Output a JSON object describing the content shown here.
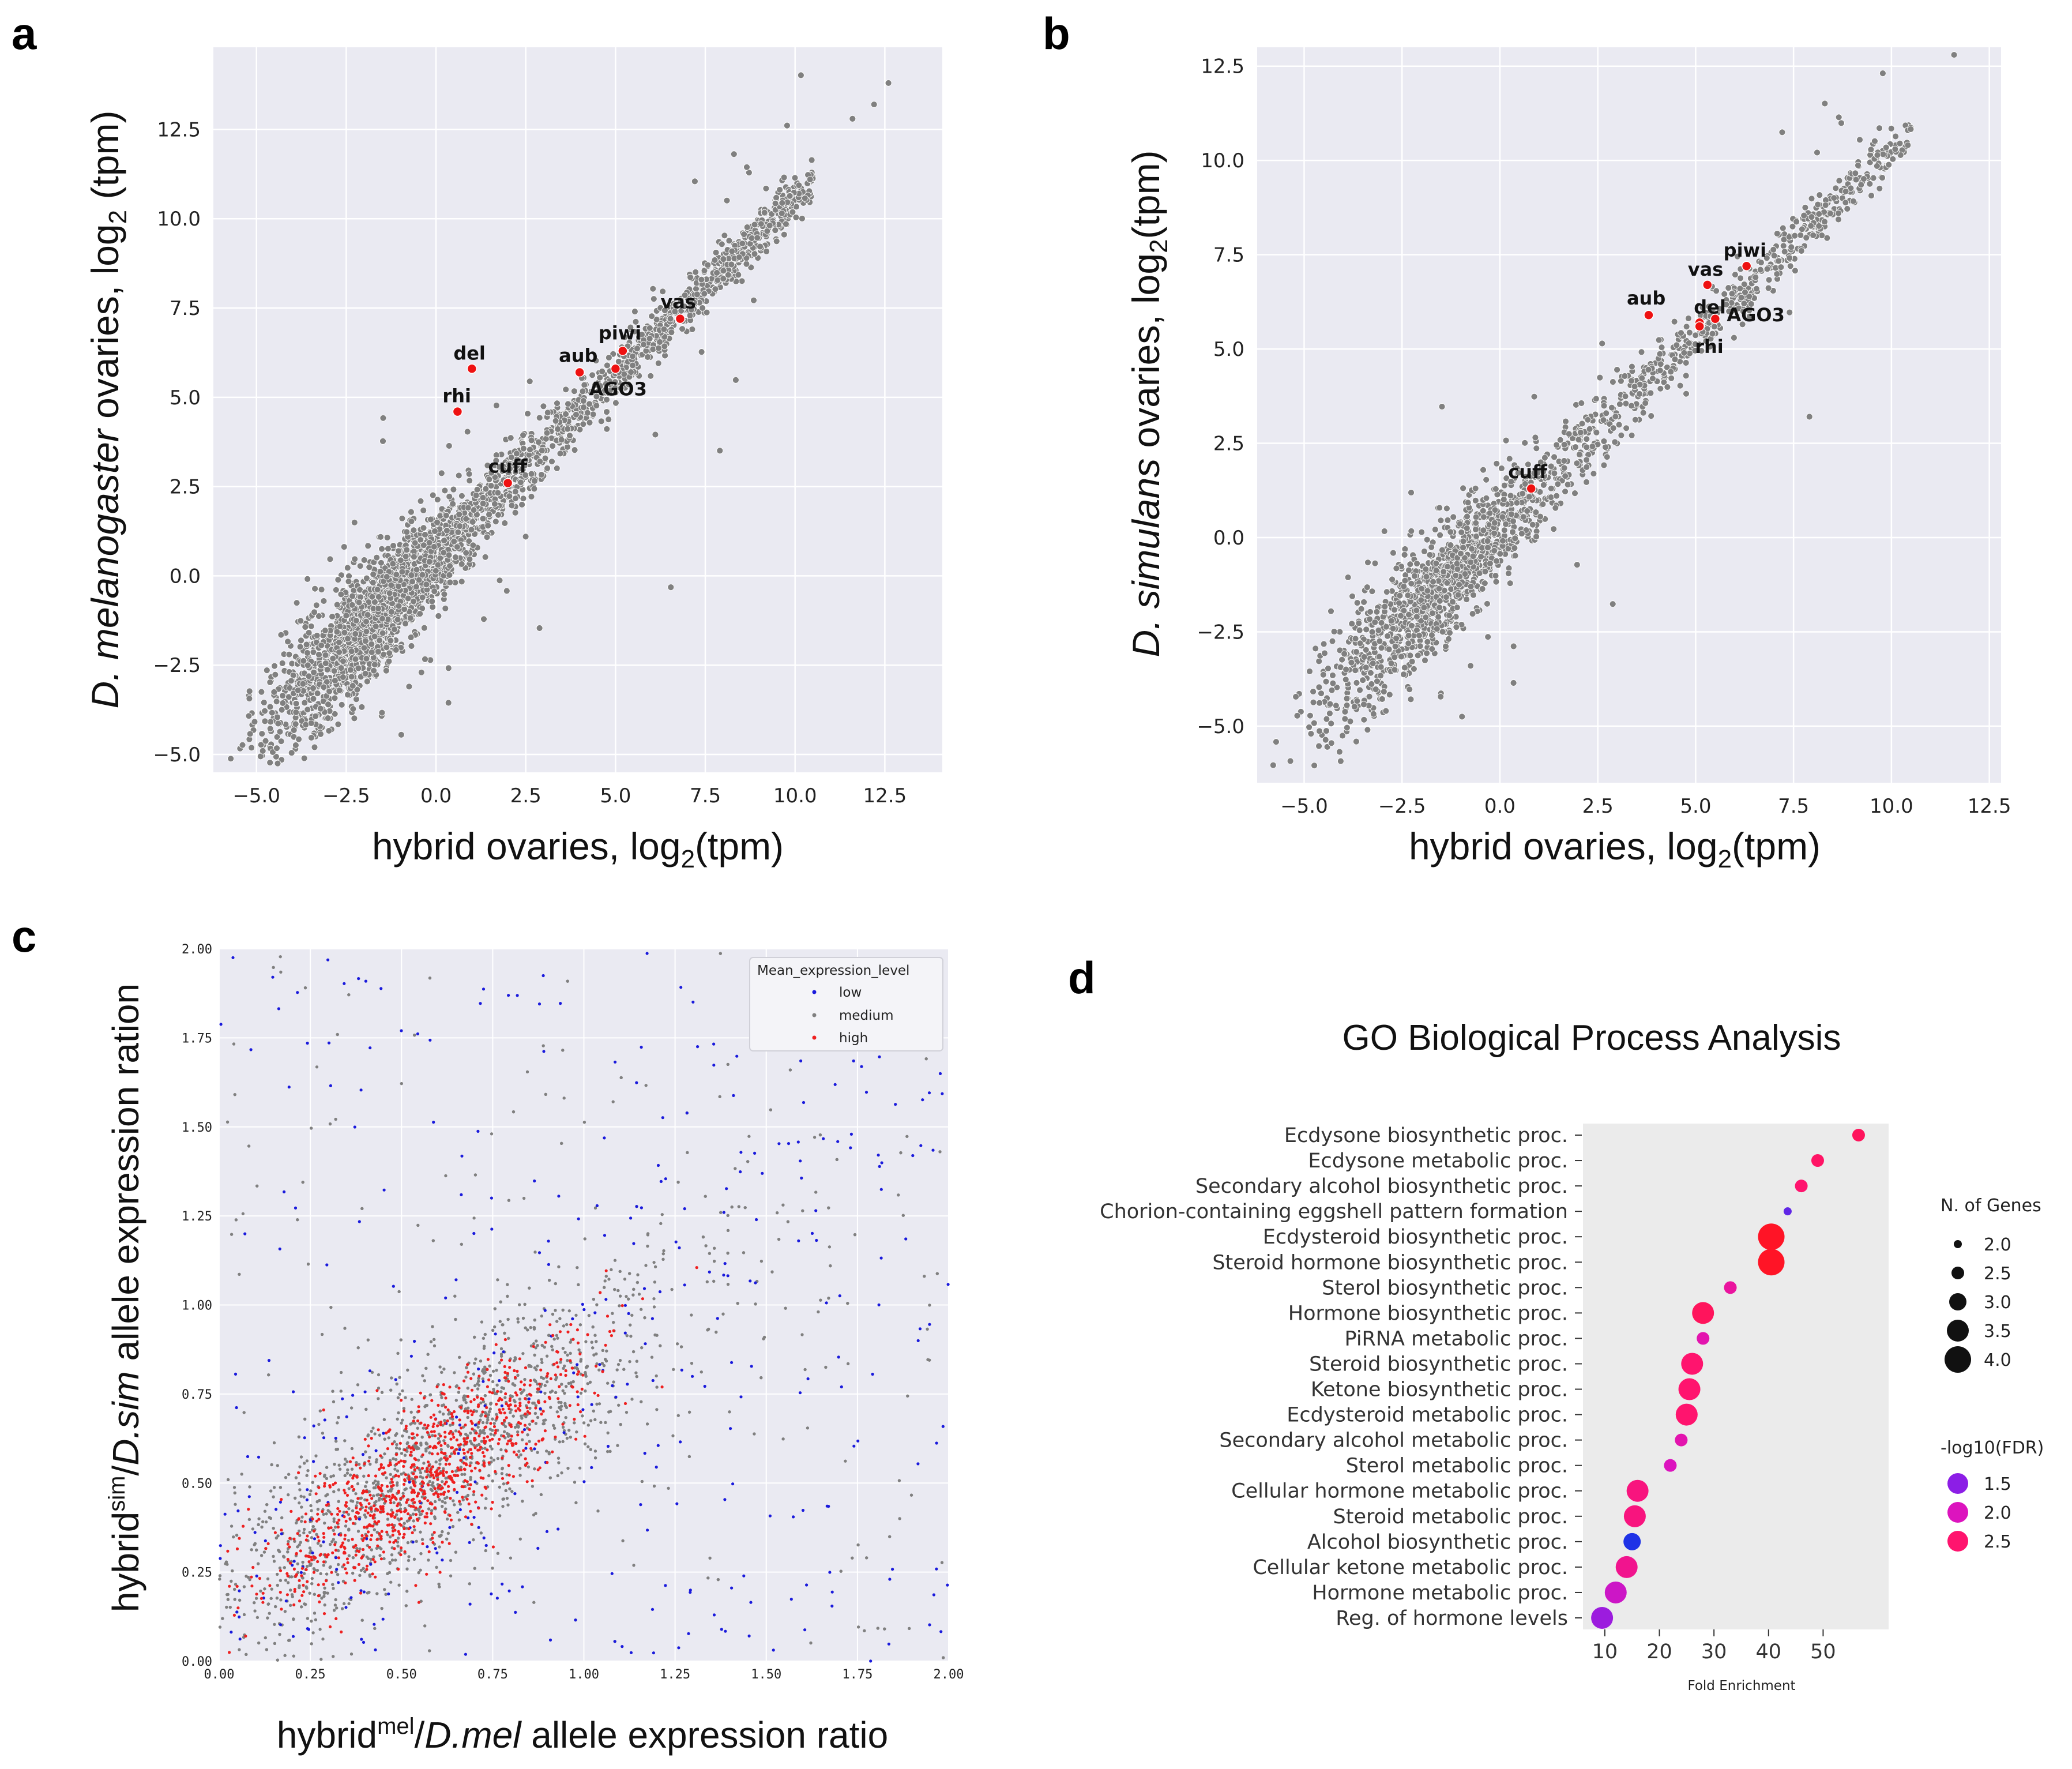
{
  "panel_labels": {
    "a": "a",
    "b": "b",
    "c": "c",
    "d": "d"
  },
  "chart_data": [
    {
      "id": "a",
      "type": "scatter",
      "title": "",
      "xlabel_text": "hybrid ovaries, log",
      "xlabel_sub": "2",
      "xlabel_tail": "(tpm)",
      "ylabel_italic": "D. melanogaster",
      "ylabel_text": " ovaries, log",
      "ylabel_sub": "2",
      "ylabel_tail": " (tpm)",
      "xlim": [
        -6.2,
        14.1
      ],
      "ylim": [
        -5.5,
        14.8
      ],
      "xticks": [
        -5.0,
        -2.5,
        0.0,
        2.5,
        5.0,
        7.5,
        10.0,
        12.5
      ],
      "yticks": [
        -5.0,
        -2.5,
        0.0,
        2.5,
        5.0,
        7.5,
        10.0,
        12.5
      ],
      "xtick_labels": [
        "−5.0",
        "−2.5",
        "0.0",
        "2.5",
        "5.0",
        "7.5",
        "10.0",
        "12.5"
      ],
      "ytick_labels": [
        "−5.0",
        "−2.5",
        "0.0",
        "2.5",
        "5.0",
        "7.5",
        "10.0",
        "12.5"
      ],
      "grid": true,
      "cloud": {
        "slope": 1.0,
        "intercept": 0.6,
        "x_range": [
          -5.8,
          13.2
        ],
        "n_points": 5200,
        "color": "#808080"
      },
      "highlighted_genes": [
        {
          "label": "del",
          "x": 1.0,
          "y": 5.8
        },
        {
          "label": "rhi",
          "x": 0.6,
          "y": 4.6
        },
        {
          "label": "aub",
          "x": 4.0,
          "y": 5.7
        },
        {
          "label": "piwi",
          "x": 5.2,
          "y": 6.3
        },
        {
          "label": "AGO3",
          "x": 5.0,
          "y": 5.8
        },
        {
          "label": "vas",
          "x": 6.8,
          "y": 7.2
        },
        {
          "label": "cuff",
          "x": 2.0,
          "y": 2.6
        }
      ],
      "highlight_color": "#ee1111"
    },
    {
      "id": "b",
      "type": "scatter",
      "title": "",
      "xlabel_text": "hybrid ovaries, log",
      "xlabel_sub": "2",
      "xlabel_tail": "(tpm)",
      "ylabel_italic": "D. simulans",
      "ylabel_text": " ovaries, log",
      "ylabel_sub": "2",
      "ylabel_tail": "(tpm)",
      "xlim": [
        -6.2,
        12.8
      ],
      "ylim": [
        -6.5,
        13.0
      ],
      "xticks": [
        -5.0,
        -2.5,
        0.0,
        2.5,
        5.0,
        7.5,
        10.0,
        12.5
      ],
      "yticks": [
        -5.0,
        -2.5,
        0.0,
        2.5,
        5.0,
        7.5,
        10.0,
        12.5
      ],
      "xtick_labels": [
        "−5.0",
        "−2.5",
        "0.0",
        "2.5",
        "5.0",
        "7.5",
        "10.0",
        "12.5"
      ],
      "ytick_labels": [
        "−5.0",
        "−2.5",
        "0.0",
        "2.5",
        "5.0",
        "7.5",
        "10.0",
        "12.5"
      ],
      "grid": true,
      "cloud": {
        "slope": 1.0,
        "intercept": 0.3,
        "x_range": [
          -5.8,
          12.0
        ],
        "n_points": 5200,
        "color": "#808080"
      },
      "highlighted_genes": [
        {
          "label": "piwi",
          "x": 6.3,
          "y": 7.2
        },
        {
          "label": "vas",
          "x": 5.3,
          "y": 6.7
        },
        {
          "label": "aub",
          "x": 3.8,
          "y": 5.9
        },
        {
          "label": "del",
          "x": 5.1,
          "y": 5.7
        },
        {
          "label": "AGO3",
          "x": 5.5,
          "y": 5.8
        },
        {
          "label": "rhi",
          "x": 5.1,
          "y": 5.6
        },
        {
          "label": "cuff",
          "x": 0.8,
          "y": 1.3
        }
      ],
      "highlight_color": "#ee1111"
    },
    {
      "id": "c",
      "type": "scatter",
      "title": "",
      "xlabel_pre": "hybrid",
      "xlabel_sup": "mel",
      "xlabel_mid": "/",
      "xlabel_italic": "D.mel",
      "xlabel_tail": " allele expression ratio",
      "ylabel_pre": "hybrid",
      "ylabel_sup": "sim",
      "ylabel_mid": "/",
      "ylabel_italic": "D.sim",
      "ylabel_tail": " allele expression ration",
      "xlim": [
        0,
        2
      ],
      "ylim": [
        0,
        2
      ],
      "xticks": [
        0.0,
        0.25,
        0.5,
        0.75,
        1.0,
        1.25,
        1.5,
        1.75,
        2.0
      ],
      "yticks": [
        0.0,
        0.25,
        0.5,
        0.75,
        1.0,
        1.25,
        1.5,
        1.75,
        2.0
      ],
      "xtick_labels": [
        "0.00",
        "0.25",
        "0.50",
        "0.75",
        "1.00",
        "1.25",
        "1.50",
        "1.75",
        "2.00"
      ],
      "ytick_labels": [
        "0.00",
        "0.25",
        "0.50",
        "0.75",
        "1.00",
        "1.25",
        "1.50",
        "1.75",
        "2.00"
      ],
      "grid": true,
      "legend_title": "Mean_expression_level",
      "legend_location": "top-right",
      "series": [
        {
          "name": "low",
          "color": "#1a1adc",
          "n_points": 420,
          "center": [
            0.6,
            0.55
          ],
          "spread": 0.45
        },
        {
          "name": "medium",
          "color": "#808080",
          "n_points": 4200,
          "center": [
            0.58,
            0.55
          ],
          "spread": 0.22
        },
        {
          "name": "high",
          "color": "#ee2020",
          "n_points": 900,
          "center": [
            0.55,
            0.52
          ],
          "spread": 0.15
        }
      ]
    },
    {
      "id": "d",
      "type": "scatter",
      "title": "GO Biological Process Analysis",
      "xlabel": "Fold Enrichment",
      "xlim": [
        6,
        62
      ],
      "xticks": [
        10,
        20,
        30,
        40,
        50
      ],
      "xtick_labels": [
        "10",
        "20",
        "30",
        "40",
        "50"
      ],
      "categories": [
        "Ecdysone biosynthetic proc.",
        "Ecdysone metabolic proc.",
        "Secondary alcohol biosynthetic proc.",
        "Chorion-containing eggshell pattern formation",
        "Ecdysteroid biosynthetic proc.",
        "Steroid hormone biosynthetic proc.",
        "Sterol biosynthetic proc.",
        "Hormone biosynthetic proc.",
        "PiRNA metabolic proc.",
        "Steroid biosynthetic proc.",
        "Ketone biosynthetic proc.",
        "Ecdysteroid metabolic proc.",
        "Secondary alcohol metabolic proc.",
        "Sterol metabolic proc.",
        "Cellular hormone metabolic proc.",
        "Steroid metabolic proc.",
        "Alcohol biosynthetic proc.",
        "Cellular ketone metabolic proc.",
        "Hormone metabolic proc.",
        "Reg. of hormone levels"
      ],
      "fold_enrichment": [
        56.5,
        49.0,
        46.0,
        43.5,
        40.5,
        40.5,
        33.0,
        28.0,
        28.0,
        26.0,
        25.5,
        25.0,
        24.0,
        22.0,
        16.0,
        15.5,
        15.0,
        14.0,
        12.0,
        9.5
      ],
      "n_genes": [
        2.5,
        2.5,
        2.5,
        2.0,
        4.0,
        4.0,
        2.5,
        3.5,
        2.5,
        3.5,
        3.5,
        3.5,
        2.5,
        2.5,
        3.5,
        3.5,
        3.0,
        3.5,
        3.5,
        3.5
      ],
      "neg_log10_fdr": [
        2.6,
        2.55,
        2.5,
        1.3,
        2.9,
        2.9,
        2.2,
        2.6,
        2.1,
        2.5,
        2.5,
        2.5,
        2.1,
        2.0,
        2.4,
        2.4,
        1.0,
        2.3,
        1.9,
        1.6
      ],
      "size_legend_title": "N. of Genes",
      "size_legend_values": [
        2.0,
        2.5,
        3.0,
        3.5,
        4.0
      ],
      "size_legend_labels": [
        "2.0",
        "2.5",
        "3.0",
        "3.5",
        "4.0"
      ],
      "color_legend_title": "-log10(FDR)",
      "color_legend_values": [
        1.5,
        2.0,
        2.5
      ],
      "color_legend_labels": [
        "1.5",
        "2.0",
        "2.5"
      ],
      "legend_location": "right"
    }
  ]
}
